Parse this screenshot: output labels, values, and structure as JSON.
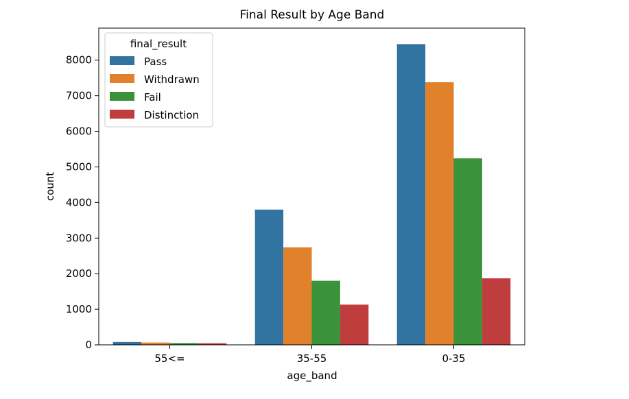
{
  "chart_data": {
    "type": "bar",
    "title": "Final Result by Age Band",
    "xlabel": "age_band",
    "ylabel": "count",
    "categories": [
      "55<=",
      "35-55",
      "0-35"
    ],
    "ylim": [
      0,
      8900
    ],
    "yticks": [
      0,
      1000,
      2000,
      3000,
      4000,
      5000,
      6000,
      7000,
      8000
    ],
    "legend": {
      "title": "final_result",
      "placement": "top-left"
    },
    "grid": false,
    "series": [
      {
        "name": "Pass",
        "color": "#3274a1",
        "values": [
          80,
          3800,
          8450
        ]
      },
      {
        "name": "Withdrawn",
        "color": "#e1812c",
        "values": [
          65,
          2740,
          7380
        ]
      },
      {
        "name": "Fail",
        "color": "#3a923a",
        "values": [
          50,
          1800,
          5240
        ]
      },
      {
        "name": "Distinction",
        "color": "#c03d3e",
        "values": [
          45,
          1130,
          1870
        ]
      }
    ]
  }
}
